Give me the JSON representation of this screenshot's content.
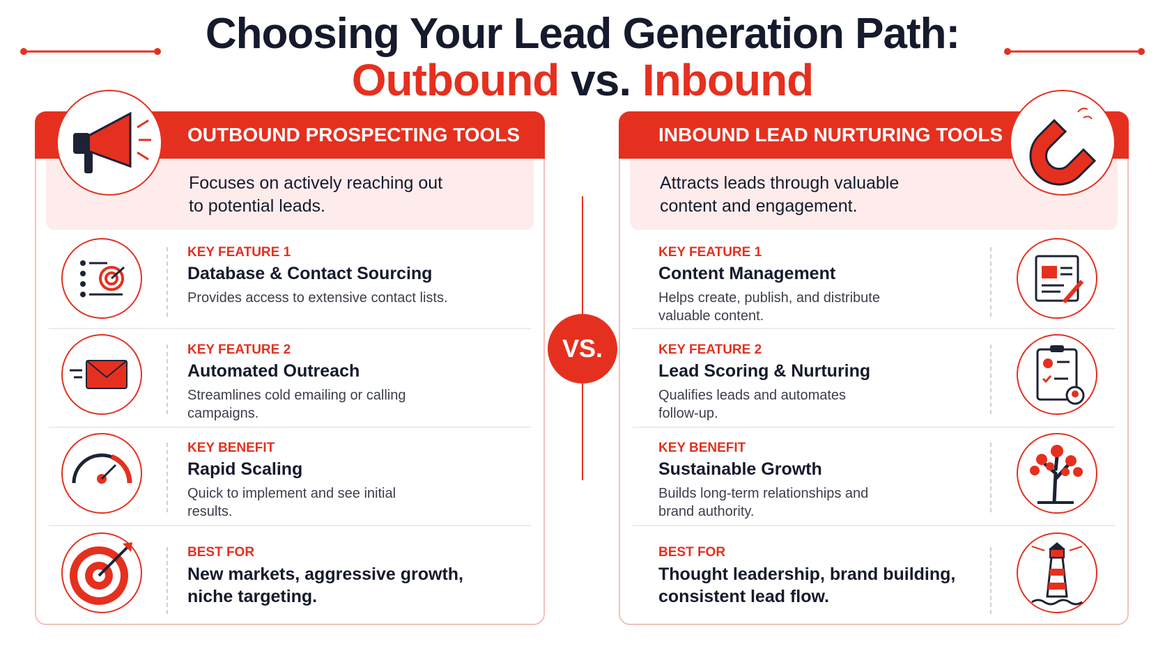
{
  "title": {
    "line1": "Choosing Your Lead Generation Path:",
    "outbound": "Outbound",
    "vs": "vs.",
    "inbound": "Inbound"
  },
  "vs_badge": "VS.",
  "panels": [
    {
      "heading": "OUTBOUND PROSPECTING TOOLS",
      "summary": "Focuses on actively reaching out to potential leads.",
      "rows": [
        {
          "label": "KEY FEATURE 1",
          "title": "Database & Contact Sourcing",
          "description": "Provides access to extensive contact lists."
        },
        {
          "label": "KEY FEATURE 2",
          "title": "Automated Outreach",
          "description": "Streamlines cold emailing or calling campaigns."
        },
        {
          "label": "KEY BENEFIT",
          "title": "Rapid Scaling",
          "description": "Quick to implement and see initial results."
        },
        {
          "label": "BEST FOR",
          "title": "New markets, aggressive growth, niche targeting."
        }
      ]
    },
    {
      "heading": "INBOUND LEAD NURTURING TOOLS",
      "summary": "Attracts leads through valuable content and engagement.",
      "rows": [
        {
          "label": "KEY FEATURE 1",
          "title": "Content Management",
          "description": "Helps create, publish, and distribute valuable content."
        },
        {
          "label": "KEY FEATURE 2",
          "title": "Lead Scoring & Nurturing",
          "description": "Qualifies leads and automates follow-up."
        },
        {
          "label": "KEY BENEFIT",
          "title": "Sustainable Growth",
          "description": "Builds long-term relationships and brand authority."
        },
        {
          "label": "BEST FOR",
          "title": "Thought leadership, brand building, consistent lead flow."
        }
      ]
    }
  ]
}
